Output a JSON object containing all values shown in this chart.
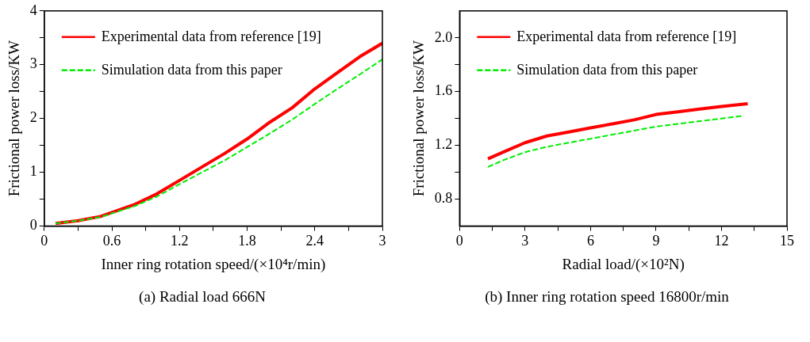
{
  "chart_data": [
    {
      "type": "line",
      "xlabel": "Inner ring rotation speed/(×10⁴r/min)",
      "ylabel": "Frictional power loss/KW",
      "annotations": [
        "(a) Radial load 666N"
      ],
      "xlim": [
        0,
        3
      ],
      "xticks": [
        0,
        {
          "value": 0.3,
          "label": null
        },
        0.6,
        {
          "value": 0.9,
          "label": null
        },
        1.2,
        {
          "value": 1.5,
          "label": null
        },
        1.8,
        {
          "value": 2.1,
          "label": null
        },
        2.4,
        {
          "value": 2.7,
          "label": null
        },
        3
      ],
      "ylim": [
        0,
        4
      ],
      "yticks": [
        0,
        {
          "value": 0.5,
          "label": null
        },
        1,
        {
          "value": 1.5,
          "label": null
        },
        2,
        {
          "value": 2.5,
          "label": null
        },
        3,
        {
          "value": 3.5,
          "label": null
        },
        4
      ],
      "grid": false,
      "legend": "top left",
      "marker": "none",
      "series": [
        {
          "name": "Experimental data from reference [19]",
          "color": "#ff0000",
          "line_style": "solid",
          "x": [
            0.1,
            0.3,
            0.5,
            0.8,
            1.0,
            1.2,
            1.4,
            1.6,
            1.8,
            2.0,
            2.2,
            2.4,
            2.6,
            2.8,
            3.0
          ],
          "values": [
            0.05,
            0.1,
            0.18,
            0.4,
            0.6,
            0.85,
            1.1,
            1.35,
            1.62,
            1.93,
            2.2,
            2.55,
            2.85,
            3.15,
            3.4
          ]
        },
        {
          "name": "Simulation data from this paper",
          "color": "#00ee00",
          "line_style": "dashed",
          "x": [
            0.1,
            0.3,
            0.5,
            0.8,
            1.0,
            1.2,
            1.4,
            1.6,
            1.8,
            2.0,
            2.2,
            2.4,
            2.6,
            2.8,
            3.0
          ],
          "values": [
            0.05,
            0.1,
            0.17,
            0.37,
            0.55,
            0.78,
            1.0,
            1.22,
            1.47,
            1.72,
            1.98,
            2.27,
            2.55,
            2.82,
            3.1
          ]
        }
      ]
    },
    {
      "type": "line",
      "xlabel": "Radial load/(×10²N)",
      "ylabel": "Frictional power loss/KW",
      "annotations": [
        "(b) Inner ring rotation speed 16800r/min"
      ],
      "xlim": [
        0,
        15
      ],
      "xticks": [
        0,
        {
          "value": 1.5,
          "label": null
        },
        3,
        {
          "value": 4.5,
          "label": null
        },
        6,
        {
          "value": 7.5,
          "label": null
        },
        9,
        {
          "value": 10.5,
          "label": null
        },
        12,
        {
          "value": 13.5,
          "label": null
        },
        15
      ],
      "ylim": [
        0.6,
        2.2
      ],
      "yticks": [
        0.8,
        {
          "value": 1.0,
          "label": null
        },
        1.2,
        {
          "value": 1.4,
          "label": null
        },
        1.6,
        {
          "value": 1.8,
          "label": null
        },
        {
          "value": 2,
          "label": "2.0"
        }
      ],
      "grid": false,
      "legend": "top left",
      "marker": "none",
      "series": [
        {
          "name": "Experimental data from reference [19]",
          "color": "#ff0000",
          "line_style": "solid",
          "x": [
            1.3,
            2,
            3,
            4,
            5,
            6,
            7,
            8,
            9,
            10,
            11,
            12,
            13.2
          ],
          "values": [
            1.1,
            1.15,
            1.22,
            1.27,
            1.3,
            1.33,
            1.36,
            1.39,
            1.43,
            1.45,
            1.47,
            1.49,
            1.51
          ]
        },
        {
          "name": "Simulation data from this paper",
          "color": "#00ee00",
          "line_style": "dashed",
          "x": [
            1.3,
            2,
            3,
            4,
            5,
            6,
            7,
            8,
            9,
            10,
            11,
            12,
            13
          ],
          "values": [
            1.04,
            1.09,
            1.15,
            1.19,
            1.22,
            1.25,
            1.28,
            1.31,
            1.34,
            1.36,
            1.38,
            1.4,
            1.42
          ]
        }
      ]
    }
  ]
}
